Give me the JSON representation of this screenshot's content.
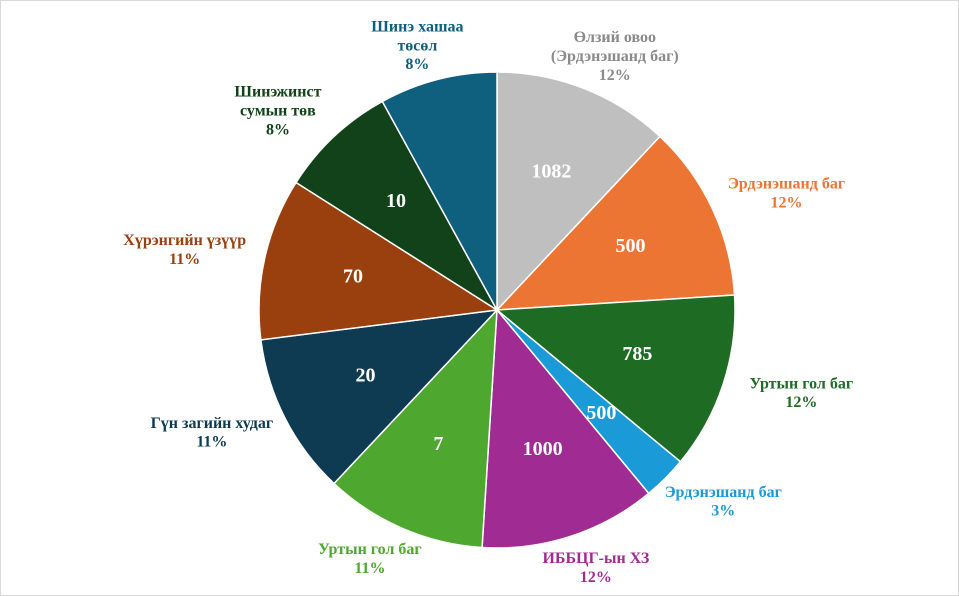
{
  "chart_data": {
    "type": "pie",
    "categories": [
      "Өлзий овоо\n(Эрдэнэшанд баг)",
      "Эрдэнэшанд баг",
      "Уртын гол баг",
      "Эрдэнэшанд баг",
      "ИББЦГ-ын ХЗ",
      "Уртын гол баг",
      "Гүн загийн худаг",
      "Хүрэнгийн үзүүр",
      "Шинэжинст\nсумын төв",
      "Шинэ хашаа\nтөсөл"
    ],
    "values": [
      12,
      12,
      12,
      3,
      12,
      11,
      11,
      11,
      8,
      8
    ],
    "value_labels": [
      "12%",
      "12%",
      "12%",
      "3%",
      "12%",
      "11%",
      "11%",
      "11%",
      "8%",
      "8%"
    ],
    "inner_labels": [
      "1082",
      "500",
      "785",
      "500",
      "1000",
      "7",
      "20",
      "70",
      "10",
      null
    ],
    "colors": [
      "#bfbfbf",
      "#ed7533",
      "#1e6b24",
      "#1a9ad6",
      "#a02b93",
      "#4ea72e",
      "#0e3a52",
      "#9a3f0e",
      "#12421a",
      "#0f5f7f"
    ],
    "label_colors": [
      "#8a8a8a",
      "#ed7533",
      "#1e6b24",
      "#1a9ad6",
      "#a02b93",
      "#4ea72e",
      "#0e3a52",
      "#9a3f0e",
      "#12421a",
      "#0f5f7f"
    ]
  }
}
